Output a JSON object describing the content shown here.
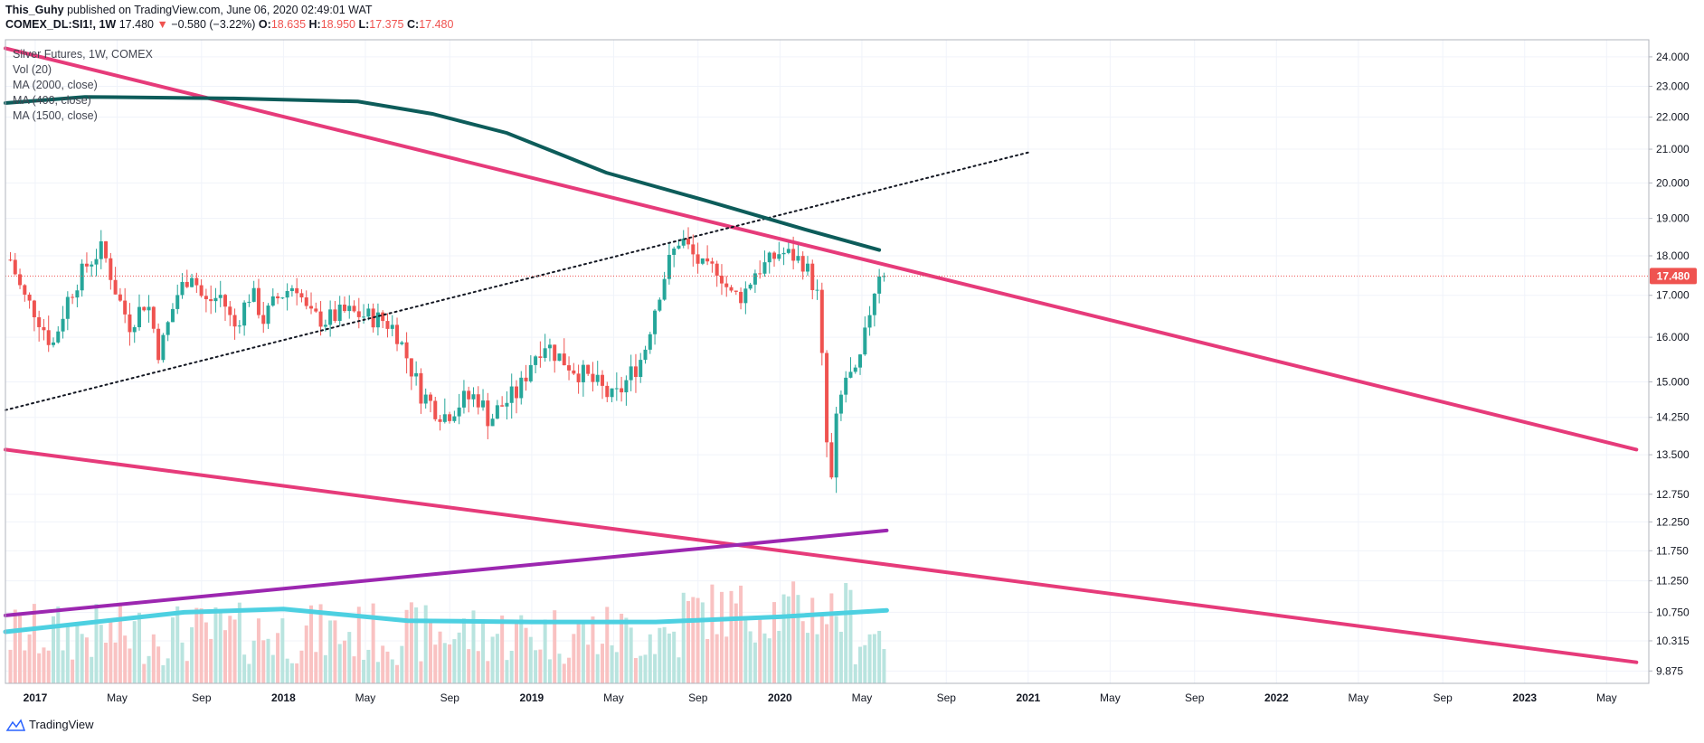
{
  "header": {
    "author": "This_Guhy",
    "published": "published on TradingView.com, June 06, 2020 02:49:01 WAT",
    "symbol": "COMEX_DL:SI1!, 1W",
    "last": "17.480",
    "change": "−0.580 (−3.22%)",
    "open_label": "O:",
    "open": "18.635",
    "high_label": "H:",
    "high": "18.950",
    "low_label": "L:",
    "low": "17.375",
    "close_label": "C:",
    "close": "17.480"
  },
  "legend": [
    "Silver Futures, 1W, COMEX",
    "Vol (20)",
    "MA (2000, close)",
    "MA (400, close)",
    "MA (1500, close)"
  ],
  "price_tag": "17.480",
  "footer": {
    "brand": "TradingView"
  },
  "colors": {
    "up": "#26a69a",
    "down": "#ef5350",
    "trend": "#e63b7a",
    "ma_dark": "#0d5c5a",
    "ma_purple": "#9c27b0",
    "ma_cyan": "#4dd0e1",
    "vol_ma": "#ff9800"
  },
  "chart_data": {
    "type": "candlestick",
    "title": "Silver Futures, 1W, COMEX",
    "y_ticks": [
      "24.000",
      "23.000",
      "22.000",
      "21.000",
      "20.000",
      "19.000",
      "18.000",
      "17.000",
      "16.000",
      "15.000",
      "14.250",
      "13.500",
      "12.750",
      "12.250",
      "11.750",
      "11.250",
      "10.750",
      "10.315",
      "9.875"
    ],
    "x_ticks": [
      {
        "label": "2017",
        "year": true
      },
      {
        "label": "May",
        "year": false
      },
      {
        "label": "Sep",
        "year": false
      },
      {
        "label": "2018",
        "year": true
      },
      {
        "label": "May",
        "year": false
      },
      {
        "label": "Sep",
        "year": false
      },
      {
        "label": "2019",
        "year": true
      },
      {
        "label": "May",
        "year": false
      },
      {
        "label": "Sep",
        "year": false
      },
      {
        "label": "2020",
        "year": true
      },
      {
        "label": "May",
        "year": false
      },
      {
        "label": "Sep",
        "year": false
      },
      {
        "label": "2021",
        "year": true
      },
      {
        "label": "May",
        "year": false
      },
      {
        "label": "Sep",
        "year": false
      },
      {
        "label": "2022",
        "year": true
      },
      {
        "label": "May",
        "year": false
      },
      {
        "label": "Sep",
        "year": false
      },
      {
        "label": "2023",
        "year": true
      },
      {
        "label": "May",
        "year": false
      }
    ],
    "last_price": 17.48,
    "weekly_close_path": [
      [
        2016.9,
        17.9
      ],
      [
        2016.95,
        17.0
      ],
      [
        2017.0,
        16.6
      ],
      [
        2017.07,
        15.8
      ],
      [
        2017.13,
        16.9
      ],
      [
        2017.2,
        17.7
      ],
      [
        2017.27,
        18.2
      ],
      [
        2017.33,
        17.0
      ],
      [
        2017.38,
        16.3
      ],
      [
        2017.45,
        16.9
      ],
      [
        2017.5,
        15.6
      ],
      [
        2017.57,
        17.0
      ],
      [
        2017.63,
        17.6
      ],
      [
        2017.68,
        16.8
      ],
      [
        2017.75,
        17.0
      ],
      [
        2017.8,
        16.2
      ],
      [
        2017.87,
        17.1
      ],
      [
        2017.92,
        16.4
      ],
      [
        2017.97,
        16.9
      ],
      [
        2018.05,
        17.3
      ],
      [
        2018.1,
        16.5
      ],
      [
        2018.17,
        16.4
      ],
      [
        2018.25,
        16.6
      ],
      [
        2018.33,
        16.5
      ],
      [
        2018.4,
        16.4
      ],
      [
        2018.45,
        16.2
      ],
      [
        2018.5,
        15.5
      ],
      [
        2018.55,
        14.8
      ],
      [
        2018.6,
        14.5
      ],
      [
        2018.65,
        14.3
      ],
      [
        2018.72,
        14.6
      ],
      [
        2018.78,
        14.7
      ],
      [
        2018.83,
        14.2
      ],
      [
        2018.88,
        14.5
      ],
      [
        2018.95,
        14.8
      ],
      [
        2019.0,
        15.5
      ],
      [
        2019.05,
        15.9
      ],
      [
        2019.1,
        15.6
      ],
      [
        2019.17,
        15.3
      ],
      [
        2019.22,
        15.1
      ],
      [
        2019.27,
        14.9
      ],
      [
        2019.33,
        14.6
      ],
      [
        2019.38,
        15.0
      ],
      [
        2019.45,
        15.6
      ],
      [
        2019.5,
        16.8
      ],
      [
        2019.55,
        17.8
      ],
      [
        2019.6,
        18.5
      ],
      [
        2019.65,
        18.0
      ],
      [
        2019.7,
        17.6
      ],
      [
        2019.75,
        17.7
      ],
      [
        2019.8,
        17.0
      ],
      [
        2019.85,
        17.0
      ],
      [
        2019.9,
        17.6
      ],
      [
        2019.95,
        17.8
      ],
      [
        2020.0,
        18.1
      ],
      [
        2020.05,
        18.0
      ],
      [
        2020.1,
        17.8
      ],
      [
        2020.15,
        17.0
      ],
      [
        2020.18,
        14.6
      ],
      [
        2020.2,
        12.5
      ],
      [
        2020.23,
        14.3
      ],
      [
        2020.27,
        15.2
      ],
      [
        2020.3,
        15.0
      ],
      [
        2020.33,
        15.6
      ],
      [
        2020.37,
        16.9
      ],
      [
        2020.4,
        17.6
      ],
      [
        2020.43,
        17.48
      ]
    ],
    "lines": [
      {
        "name": "Upper trendline",
        "points": [
          [
            2016.88,
            24.3
          ],
          [
            2023.45,
            13.6
          ]
        ]
      },
      {
        "name": "Lower trendline",
        "points": [
          [
            2016.88,
            13.6
          ],
          [
            2023.45,
            10.0
          ]
        ]
      },
      {
        "name": "Dotted trendline",
        "points": [
          [
            2016.88,
            14.4
          ],
          [
            2021.0,
            20.9
          ]
        ]
      },
      {
        "name": "MA (2000, close)",
        "points": [
          [
            2016.88,
            22.45
          ],
          [
            2017.2,
            22.65
          ],
          [
            2017.8,
            22.6
          ],
          [
            2018.3,
            22.5
          ],
          [
            2018.6,
            22.1
          ],
          [
            2018.9,
            21.5
          ],
          [
            2019.3,
            20.3
          ],
          [
            2019.7,
            19.5
          ],
          [
            2020.1,
            18.7
          ],
          [
            2020.4,
            18.15
          ]
        ]
      },
      {
        "name": "MA (400, close)",
        "points": [
          [
            2016.88,
            10.7
          ],
          [
            2020.43,
            12.1
          ]
        ]
      },
      {
        "name": "MA (1500, close)",
        "points": [
          [
            2016.88,
            10.45
          ],
          [
            2017.6,
            10.75
          ],
          [
            2018.0,
            10.8
          ],
          [
            2018.5,
            10.62
          ],
          [
            2019.0,
            10.6
          ],
          [
            2019.5,
            10.6
          ],
          [
            2020.0,
            10.68
          ],
          [
            2020.43,
            10.78
          ]
        ]
      }
    ],
    "ylim": [
      9.7,
      24.6
    ],
    "xlim": [
      2016.88,
      2023.5
    ]
  }
}
